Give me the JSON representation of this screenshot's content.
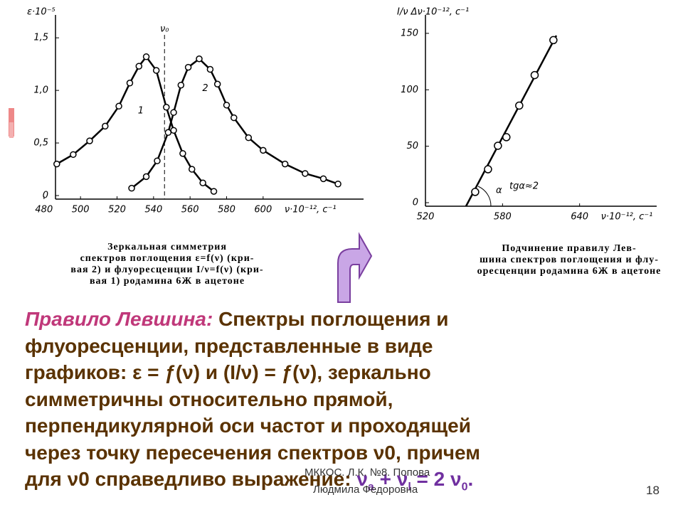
{
  "chart_data": [
    {
      "type": "line",
      "y_label": "ε·10⁻⁵",
      "x_label": "ν·10⁻¹², с⁻¹",
      "marker_label": "ν₀",
      "marker_x": 546,
      "xlim": [
        475,
        655
      ],
      "ylim": [
        0,
        1.65
      ],
      "xticks": [
        480,
        500,
        520,
        540,
        560,
        580,
        600
      ],
      "yticks": [
        0,
        {
          "value": 0.5,
          "label": "0,5"
        },
        {
          "value": 1.0,
          "label": "1,0"
        },
        {
          "value": 1.5,
          "label": "1,5"
        }
      ],
      "series": [
        {
          "name": "1",
          "color": "#000000",
          "x": [
            487,
            496,
            505,
            513.5,
            521,
            527,
            532,
            536,
            541.5,
            547,
            551,
            556,
            561,
            567,
            573
          ],
          "values": [
            0.3,
            0.39,
            0.52,
            0.66,
            0.85,
            1.07,
            1.23,
            1.32,
            1.19,
            0.84,
            0.62,
            0.4,
            0.25,
            0.12,
            0.04
          ]
        },
        {
          "name": "2",
          "color": "#000000",
          "x": [
            528,
            536,
            542,
            548,
            551,
            555,
            559,
            565,
            571,
            575,
            580,
            584,
            592,
            600,
            612,
            623,
            633,
            641
          ],
          "values": [
            0.07,
            0.18,
            0.33,
            0.6,
            0.79,
            1.05,
            1.22,
            1.3,
            1.2,
            1.06,
            0.86,
            0.74,
            0.55,
            0.43,
            0.3,
            0.21,
            0.16,
            0.11
          ]
        }
      ]
    },
    {
      "type": "scatter",
      "y_label": "I/ν  Δν·10⁻¹², с⁻¹",
      "x_label": "ν·10⁻¹², с⁻¹",
      "angle_label": "α",
      "slope_label": "tgα≈2",
      "xlim": [
        515,
        700
      ],
      "ylim": [
        0,
        160
      ],
      "xticks": [
        520,
        580,
        640
      ],
      "yticks": [
        0,
        50,
        100,
        150
      ],
      "series": [
        {
          "color": "#000000",
          "x": [
            558.7,
            568.7,
            576.4,
            583,
            593,
            605,
            619.6
          ],
          "values": [
            9.5,
            29.6,
            50.4,
            58,
            86,
            113,
            144
          ]
        }
      ]
    }
  ],
  "captions": {
    "left": [
      "Зеркальная симметрия",
      "спектров поглощения ε=f(ν) (кри-",
      "вая 2) и флуоресценции I/ν=f(ν) (кри-",
      "вая 1) родамина 6Ж в ацетоне"
    ],
    "right": [
      "Подчинение правилу Лев-",
      "шина спектров поглощения и флу-",
      "оресценции родамина 6Ж в ацетоне"
    ]
  },
  "rule": {
    "title": "Правило Левшина:",
    "lines": [
      "Спектры поглощения и",
      "флуоресценции, представленные в виде",
      "графиков: ε = ƒ(ν) и (I/ν) = ƒ(ν), зеркально",
      "симметричны относительно прямой,",
      "перпендикулярной оси частот и проходящей",
      "через точку пересечения спектров ν0, причем",
      "для ν0 справедливо выражение:"
    ],
    "formula": [
      "ν",
      "a",
      " + ν",
      "l",
      " = 2 ν",
      "0",
      "."
    ]
  },
  "footer": {
    "author": [
      "МККОС. Л.К. №8. Попова",
      "Людмила Федоровна"
    ],
    "page": "18"
  }
}
